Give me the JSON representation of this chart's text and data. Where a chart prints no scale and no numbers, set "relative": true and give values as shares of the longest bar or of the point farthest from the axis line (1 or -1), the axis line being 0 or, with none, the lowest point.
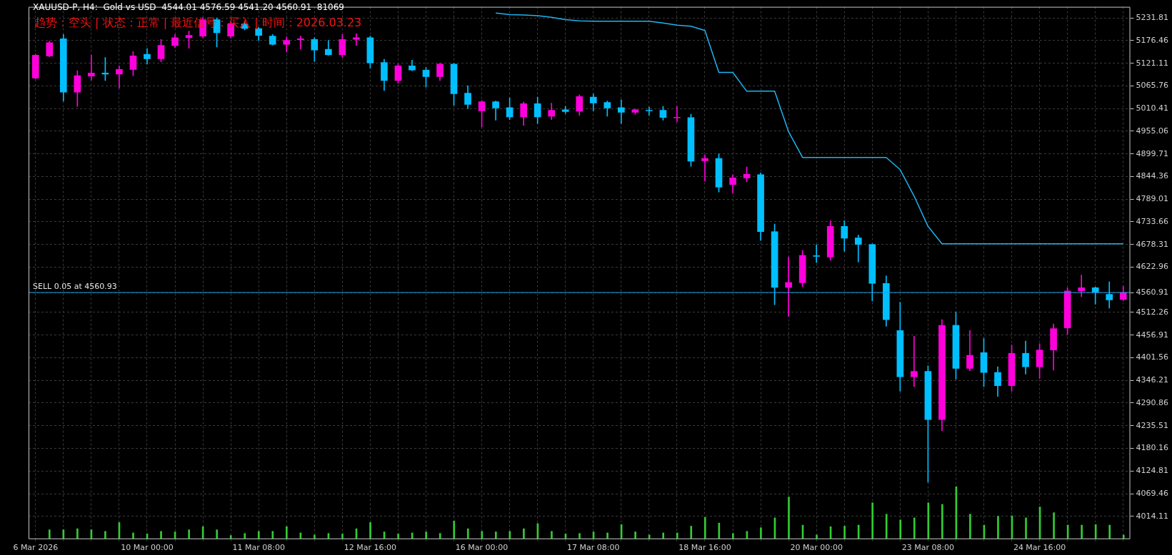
{
  "chart_data": [
    {
      "type": "candlestick",
      "title": "XAUUSD-P, H4:  Gold vs USD  4544.01 4576.59 4541.20 4560.91  81069",
      "subtitle": "趋势：空头 | 状态：正常 | 最近信号：买入 | 时间：2026.03.23",
      "categories": [
        "6 Mar 2026",
        null,
        null,
        null,
        null,
        null,
        null,
        null,
        "10 Mar 00:00",
        null,
        null,
        null,
        null,
        null,
        null,
        null,
        "11 Mar 08:00",
        null,
        null,
        null,
        null,
        null,
        null,
        null,
        "12 Mar 16:00",
        null,
        null,
        null,
        null,
        null,
        null,
        null,
        "16 Mar 00:00",
        null,
        null,
        null,
        null,
        null,
        null,
        null,
        "17 Mar 08:00",
        null,
        null,
        null,
        null,
        null,
        null,
        null,
        "18 Mar 16:00",
        null,
        null,
        null,
        null,
        null,
        null,
        null,
        "20 Mar 00:00",
        null,
        null,
        null,
        null,
        null,
        null,
        null,
        "23 Mar 08:00",
        null,
        null,
        null,
        null,
        null,
        null,
        null,
        "24 Mar 16:00",
        null,
        null,
        null,
        null,
        null,
        null
      ],
      "ylim": [
        3960,
        5259
      ],
      "yticks": [
        4014.11,
        4069.46,
        4124.81,
        4180.16,
        4235.51,
        4290.86,
        4346.21,
        4401.56,
        4456.91,
        4512.26,
        4560.91,
        4622.96,
        4678.31,
        4733.66,
        4789.01,
        4844.36,
        4899.71,
        4955.06,
        5010.41,
        5065.76,
        5121.11,
        5176.46,
        5231.81
      ],
      "grid": true,
      "ref_lines": [
        {
          "axis": "y",
          "value": 4560.93,
          "label": "SELL 0.05 at 4560.93",
          "color": "#1e9fe6"
        }
      ],
      "series": [
        {
          "type": "candlestick",
          "ohlc": [
            [
              5085.2,
              5143,
              5083,
              5140.8
            ],
            [
              5139.1,
              5175.4,
              5136.7,
              5171.4
            ],
            [
              5181.0,
              5191.5,
              5028.8,
              5050.5
            ],
            [
              5050.5,
              5102.9,
              5015.9,
              5090.8
            ],
            [
              5090.0,
              5140.8,
              5080.3,
              5097.2
            ],
            [
              5097.2,
              5135.1,
              5078.7,
              5094.8
            ],
            [
              5094.8,
              5115.0,
              5060.2,
              5106.1
            ],
            [
              5106.1,
              5149.6,
              5090.8,
              5139.1
            ],
            [
              5143.2,
              5156.9,
              5119.0,
              5131.9
            ],
            [
              5131.9,
              5179.4,
              5124.6,
              5164.9
            ],
            [
              5164.1,
              5191.5,
              5159.3,
              5183.5
            ],
            [
              5183.5,
              5199.6,
              5157.7,
              5189.1
            ],
            [
              5187.5,
              5233.4,
              5183.5,
              5227.8
            ],
            [
              5227.8,
              5231.8,
              5160.9,
              5195.5
            ],
            [
              5187.5,
              5222.1,
              5183.5,
              5217.3
            ],
            [
              5217.3,
              5223.8,
              5202.8,
              5206.0
            ],
            [
              5206.0,
              5209.2,
              5177.0,
              5189.1
            ],
            [
              5187.5,
              5191.5,
              5165.7,
              5167.4
            ],
            [
              5167.4,
              5185.9,
              5148.8,
              5177.0
            ],
            [
              5178.6,
              5187.5,
              5155.3,
              5181.0
            ],
            [
              5179.4,
              5183.5,
              5125.4,
              5153.6
            ],
            [
              5155.3,
              5177.0,
              5140.8,
              5141.6
            ],
            [
              5141.6,
              5191.5,
              5135.1,
              5179.4
            ],
            [
              5179.4,
              5193.1,
              5164.9,
              5183.5
            ],
            [
              5183.5,
              5187.5,
              5109.3,
              5122.2
            ],
            [
              5123.0,
              5131.1,
              5054.5,
              5078.7
            ],
            [
              5078.7,
              5119.0,
              5072.3,
              5115.0
            ],
            [
              5115.0,
              5128.7,
              5102.9,
              5104.5
            ],
            [
              5104.5,
              5111.0,
              5062.6,
              5088.4
            ],
            [
              5088.4,
              5121.4,
              5078.7,
              5119.0
            ],
            [
              5119.0,
              5120.6,
              5018.3,
              5046.5
            ],
            [
              5048.1,
              5066.6,
              5010.3,
              5020.7
            ],
            [
              5004.6,
              5030.4,
              4965.9,
              5027.2
            ],
            [
              5027.2,
              5028.8,
              4982.0,
              5011.9
            ],
            [
              5012.7,
              5036.8,
              4983.6,
              4990.1
            ],
            [
              4990.1,
              5026.4,
              4969.1,
              5022.3
            ],
            [
              5022.3,
              5038.4,
              4974.0,
              4990.1
            ],
            [
              4991.7,
              5023.9,
              4983.6,
              5006.2
            ],
            [
              5007.8,
              5015.9,
              4998.2,
              5003.0
            ],
            [
              5003.8,
              5044.1,
              4994.1,
              5040.0
            ],
            [
              5038.4,
              5046.5,
              5004.6,
              5023.9
            ],
            [
              5025.6,
              5028.8,
              4991.7,
              5011.9
            ],
            [
              5012.7,
              5032.0,
              4974.0,
              5001.4
            ],
            [
              5001.4,
              5009.4,
              4996.5,
              5007.8
            ],
            [
              5006.2,
              5014.3,
              4994.1,
              5004.6
            ],
            [
              5006.2,
              5015.9,
              4982.0,
              4988.5
            ],
            [
              4987.7,
              5015.9,
              4978.0,
              4989.3
            ],
            [
              4988.5,
              4996.5,
              4869.3,
              4882.1
            ],
            [
              4882.9,
              4897.5,
              4833.0,
              4888.6
            ],
            [
              4888.6,
              4899.9,
              4806.4,
              4818.5
            ],
            [
              4824.9,
              4849.1,
              4803.2,
              4841.0
            ],
            [
              4841.0,
              4867.6,
              4831.4,
              4849.9
            ],
            [
              4849.1,
              4853.1,
              4688.0,
              4709.7
            ],
            [
              4709.7,
              4728.3,
              4530.9,
              4573.5
            ],
            [
              4573.5,
              4647.7,
              4502.6,
              4585.6
            ],
            [
              4584.8,
              4663.8,
              4575.1,
              4651.7
            ],
            [
              4650.9,
              4677.5,
              4634.0,
              4649.3
            ],
            [
              4647.7,
              4736.3,
              4639.6,
              4722.6
            ],
            [
              4722.6,
              4736.3,
              4661.4,
              4693.6
            ],
            [
              4694.4,
              4701.6,
              4635.6,
              4678.3
            ],
            [
              4678.3,
              4679.9,
              4540.5,
              4583.2
            ],
            [
              4583.2,
              4601.7,
              4478.5,
              4494.6
            ],
            [
              4468.0,
              4537.3,
              4319.8,
              4355.2
            ],
            [
              4355.2,
              4454.3,
              4331.0,
              4368.1
            ],
            [
              4368.1,
              4381.8,
              4097.4,
              4250.4
            ],
            [
              4250.4,
              4494.6,
              4223.1,
              4480.9
            ],
            [
              4480.9,
              4513.1,
              4349.6,
              4375.4
            ],
            [
              4375.4,
              4468.0,
              4369.7,
              4407.6
            ],
            [
              4414.0,
              4448.7,
              4331.0,
              4365.7
            ],
            [
              4365.7,
              4379.4,
              4306.9,
              4333.4
            ],
            [
              4333.4,
              4432.6,
              4319.8,
              4412.4
            ],
            [
              4412.4,
              4442.2,
              4361.7,
              4379.4
            ],
            [
              4379.4,
              4435.8,
              4351.2,
              4420.5
            ],
            [
              4420.5,
              4484.1,
              4371.3,
              4472.8
            ],
            [
              4474.4,
              4572.7,
              4458.3,
              4564.7
            ],
            [
              4564.7,
              4603.4,
              4551.0,
              4572.7
            ],
            [
              4572.7,
              4574.4,
              4532.5,
              4561.5
            ],
            [
              4556.6,
              4587.2,
              4522.8,
              4542.9
            ],
            [
              4544.01,
              4576.59,
              4541.2,
              4560.91
            ]
          ],
          "colors": [
            "#ff00dd",
            "#ff00dd",
            "#00bfff",
            "#ff00dd",
            "#ff00dd",
            "#00bfff",
            "#ff00dd",
            "#ff00dd",
            "#00bfff",
            "#ff00dd",
            "#ff00dd",
            "#ff00dd",
            "#ff00dd",
            "#00bfff",
            "#ff00dd",
            "#00bfff",
            "#00bfff",
            "#00bfff",
            "#ff00dd",
            "#ff00dd",
            "#00bfff",
            "#00bfff",
            "#ff00dd",
            "#ff00dd",
            "#00bfff",
            "#00bfff",
            "#ff00dd",
            "#00bfff",
            "#00bfff",
            "#ff00dd",
            "#00bfff",
            "#00bfff",
            "#ff00dd",
            "#00bfff",
            "#00bfff",
            "#ff00dd",
            "#00bfff",
            "#ff00dd",
            "#00bfff",
            "#ff00dd",
            "#00bfff",
            "#00bfff",
            "#00bfff",
            "#ff00dd",
            "#00bfff",
            "#00bfff",
            "#ff00dd",
            "#00bfff",
            "#ff00dd",
            "#00bfff",
            "#ff00dd",
            "#ff00dd",
            "#00bfff",
            "#00bfff",
            "#ff00dd",
            "#ff00dd",
            "#00bfff",
            "#ff00dd",
            "#00bfff",
            "#00bfff",
            "#00bfff",
            "#00bfff",
            "#00bfff",
            "#ff00dd",
            "#00bfff",
            "#ff00dd",
            "#00bfff",
            "#ff00dd",
            "#00bfff",
            "#00bfff",
            "#ff00dd",
            "#00bfff",
            "#ff00dd",
            "#ff00dd",
            "#ff00dd",
            "#ff00dd",
            "#00bfff",
            "#00bfff",
            "#ff00dd"
          ]
        },
        {
          "type": "line",
          "color": "#1eb4f0",
          "values": [
            null,
            null,
            null,
            null,
            null,
            null,
            null,
            null,
            null,
            null,
            null,
            null,
            null,
            null,
            null,
            null,
            null,
            null,
            null,
            null,
            null,
            null,
            null,
            null,
            null,
            null,
            null,
            null,
            null,
            null,
            null,
            null,
            null,
            5243.9,
            5239.9,
            5239.1,
            5237.4,
            5233.4,
            5227.8,
            5224.6,
            5223.8,
            5223.8,
            5223.8,
            5223.8,
            5223.8,
            5219.7,
            5214.1,
            5211.7,
            5201.2,
            5098.9,
            5098.9,
            5052.9,
            5052.9,
            5052.9,
            4953.8,
            4891.0,
            4891.0,
            4891.0,
            4891.0,
            4891.0,
            4891.0,
            4891.0,
            4861.2,
            4796.7,
            4722.6,
            4679.9,
            4679.9,
            4679.9,
            4679.9,
            4679.9,
            4679.9,
            4679.9,
            4679.9,
            4679.9,
            4679.9,
            4679.9,
            4679.9,
            4679.9,
            4679.9
          ]
        }
      ]
    },
    {
      "type": "bar",
      "relative": true,
      "color": "#32cd32",
      "categories": [
        null,
        null,
        null,
        null,
        null,
        null,
        null,
        null,
        null,
        null,
        null,
        null,
        null,
        null,
        null,
        null,
        null,
        null,
        null,
        null,
        null,
        null,
        null,
        null,
        null,
        null,
        null,
        null,
        null,
        null,
        null,
        null,
        null,
        null,
        null,
        null,
        null,
        null,
        null,
        null,
        null,
        null,
        null,
        null,
        null,
        null,
        null,
        null,
        null,
        null,
        null,
        null,
        null,
        null,
        null,
        null,
        null,
        null,
        null,
        null,
        null,
        null,
        null,
        null,
        null,
        null,
        null,
        null,
        null,
        null,
        null,
        null,
        null,
        null,
        null,
        null,
        null,
        null,
        null
      ],
      "values": [
        null,
        0.17,
        0.17,
        0.19,
        0.17,
        0.14,
        0.31,
        0.11,
        0.09,
        0.14,
        0.13,
        0.17,
        0.23,
        0.17,
        0.06,
        0.1,
        0.14,
        0.14,
        0.23,
        0.11,
        0.07,
        0.1,
        0.09,
        0.19,
        0.31,
        0.13,
        0.09,
        0.11,
        0.13,
        0.1,
        0.34,
        0.19,
        0.14,
        0.13,
        0.14,
        0.19,
        0.29,
        0.14,
        0.09,
        0.1,
        0.13,
        0.11,
        0.27,
        0.13,
        0.07,
        0.11,
        0.11,
        0.24,
        0.41,
        0.3,
        0.1,
        0.14,
        0.21,
        0.4,
        0.8,
        0.26,
        0.07,
        0.23,
        0.24,
        0.26,
        0.69,
        0.47,
        0.36,
        0.4,
        0.69,
        0.66,
        1,
        0.47,
        0.26,
        0.43,
        0.44,
        0.4,
        0.61,
        0.5,
        0.26,
        0.26,
        0.27,
        0.26,
        0.07
      ]
    }
  ]
}
